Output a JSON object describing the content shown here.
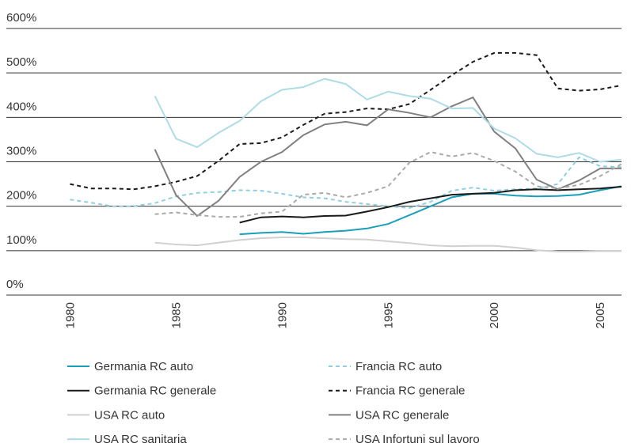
{
  "chart_data": {
    "type": "line",
    "x": [
      1980,
      1981,
      1982,
      1983,
      1984,
      1985,
      1986,
      1987,
      1988,
      1989,
      1990,
      1991,
      1992,
      1993,
      1994,
      1995,
      1996,
      1997,
      1998,
      1999,
      2000,
      2001,
      2002,
      2003,
      2004,
      2005,
      2006
    ],
    "xlim": [
      1977,
      2006
    ],
    "xticks": [
      1980,
      1985,
      1990,
      1995,
      2000,
      2005
    ],
    "ylim": [
      0,
      600
    ],
    "yticks": [
      {
        "value": 0,
        "label": "0%"
      },
      {
        "value": 100,
        "label": "100%"
      },
      {
        "value": 200,
        "label": "200%"
      },
      {
        "value": 300,
        "label": "300%"
      },
      {
        "value": 400,
        "label": "400%"
      },
      {
        "value": 500,
        "label": "500%"
      },
      {
        "value": 600,
        "label": "600%"
      }
    ],
    "grid": true,
    "series": [
      {
        "name": "Germania RC auto",
        "color": "#1a9fba",
        "dash": false,
        "values": [
          null,
          null,
          null,
          null,
          null,
          null,
          null,
          null,
          137,
          140,
          142,
          138,
          142,
          145,
          150,
          160,
          180,
          200,
          220,
          228,
          228,
          224,
          222,
          223,
          226,
          236,
          245
        ]
      },
      {
        "name": "Francia RC auto",
        "color": "#8fd0e0",
        "dash": true,
        "values": [
          215,
          208,
          200,
          200,
          207,
          222,
          230,
          232,
          236,
          235,
          228,
          220,
          218,
          210,
          205,
          200,
          196,
          210,
          235,
          242,
          235,
          238,
          240,
          250,
          310,
          290,
          288
        ]
      },
      {
        "name": "Germania RC generale",
        "color": "#1a1a1a",
        "dash": false,
        "values": [
          null,
          null,
          null,
          null,
          null,
          null,
          null,
          null,
          163,
          175,
          177,
          175,
          178,
          179,
          188,
          198,
          210,
          218,
          226,
          228,
          230,
          236,
          238,
          236,
          238,
          240,
          244
        ]
      },
      {
        "name": "Francia RC generale",
        "color": "#1a1a1a",
        "dash": true,
        "values": [
          250,
          240,
          240,
          238,
          245,
          255,
          268,
          302,
          340,
          342,
          355,
          383,
          408,
          412,
          420,
          418,
          430,
          462,
          495,
          525,
          545,
          545,
          540,
          465,
          460,
          463,
          472
        ]
      },
      {
        "name": "USA RC auto",
        "color": "#d0d0d0",
        "dash": false,
        "values": [
          null,
          null,
          null,
          null,
          118,
          114,
          112,
          118,
          124,
          128,
          130,
          130,
          128,
          126,
          125,
          121,
          117,
          112,
          110,
          111,
          111,
          107,
          101,
          98,
          98,
          99,
          99
        ]
      },
      {
        "name": "USA RC generale",
        "color": "#808080",
        "dash": false,
        "values": [
          null,
          null,
          null,
          null,
          328,
          225,
          178,
          212,
          266,
          300,
          322,
          360,
          384,
          390,
          382,
          418,
          410,
          400,
          425,
          445,
          368,
          330,
          260,
          238,
          258,
          285,
          285
        ]
      },
      {
        "name": "USA RC sanitaria",
        "color": "#aedce6",
        "dash": false,
        "values": [
          null,
          null,
          null,
          null,
          448,
          352,
          333,
          365,
          392,
          436,
          462,
          468,
          487,
          475,
          440,
          458,
          448,
          442,
          420,
          421,
          375,
          353,
          318,
          310,
          320,
          300,
          305
        ]
      },
      {
        "name": "USA Infortuni sul lavoro",
        "color": "#aaaaaa",
        "dash": true,
        "values": [
          null,
          null,
          null,
          null,
          182,
          186,
          180,
          176,
          176,
          184,
          188,
          226,
          230,
          220,
          230,
          245,
          298,
          322,
          312,
          320,
          302,
          278,
          245,
          240,
          248,
          268,
          295
        ]
      }
    ]
  }
}
